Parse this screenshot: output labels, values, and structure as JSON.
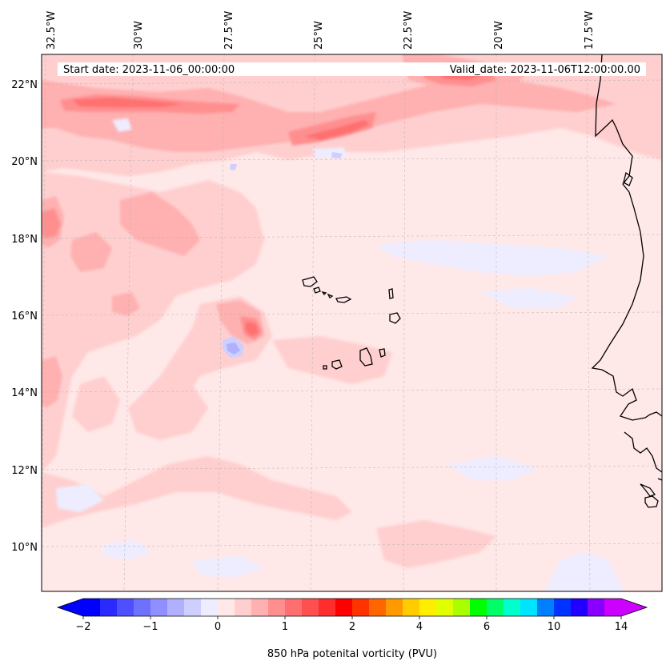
{
  "map": {
    "header_left": "Start date: 2023-11-06_00:00:00",
    "header_right": "Valid_date: 2023-11-06T12:00:00.00",
    "lon_labels": [
      "32.5°W",
      "30°W",
      "27.5°W",
      "25°W",
      "22.5°W",
      "20°W",
      "17.5°W"
    ],
    "lat_labels": [
      "22°N",
      "20°N",
      "18°N",
      "16°N",
      "14°N",
      "12°N",
      "10°N"
    ]
  },
  "colorbar": {
    "title": "850 hPa potenital vorticity (PVU)",
    "tick_labels": [
      "−2",
      "−1",
      "0",
      "1",
      "2",
      "4",
      "6",
      "10",
      "14"
    ],
    "colors": [
      "#0000ff",
      "#2a2aff",
      "#4f4fff",
      "#7070ff",
      "#8f8fff",
      "#b0b0ff",
      "#cfcfff",
      "#ededff",
      "#ffe8e8",
      "#ffcfcf",
      "#ffb0b0",
      "#ff8f8f",
      "#ff6f6f",
      "#ff4f4f",
      "#ff2d2d",
      "#ff0000",
      "#ff3300",
      "#ff6600",
      "#ff9900",
      "#ffcc00",
      "#ffee00",
      "#e1ff00",
      "#a8ff00",
      "#00ff00",
      "#00ff66",
      "#00ffcc",
      "#00e5ff",
      "#0080ff",
      "#0033ff",
      "#2200ff",
      "#8800ff",
      "#cc00ff"
    ],
    "under_color": "#0000ff",
    "over_color": "#cc00ff"
  },
  "palette": {
    "background": "#ffe8e8",
    "light_pink": "#ffcfcf",
    "pink": "#ffb0b0",
    "red_light": "#ff8f8f",
    "red": "#ff6f6f",
    "red_strong": "#ff4f4f",
    "blue_light": "#ededff",
    "blue": "#cfcfff",
    "blue_mid": "#b0b0ff"
  }
}
